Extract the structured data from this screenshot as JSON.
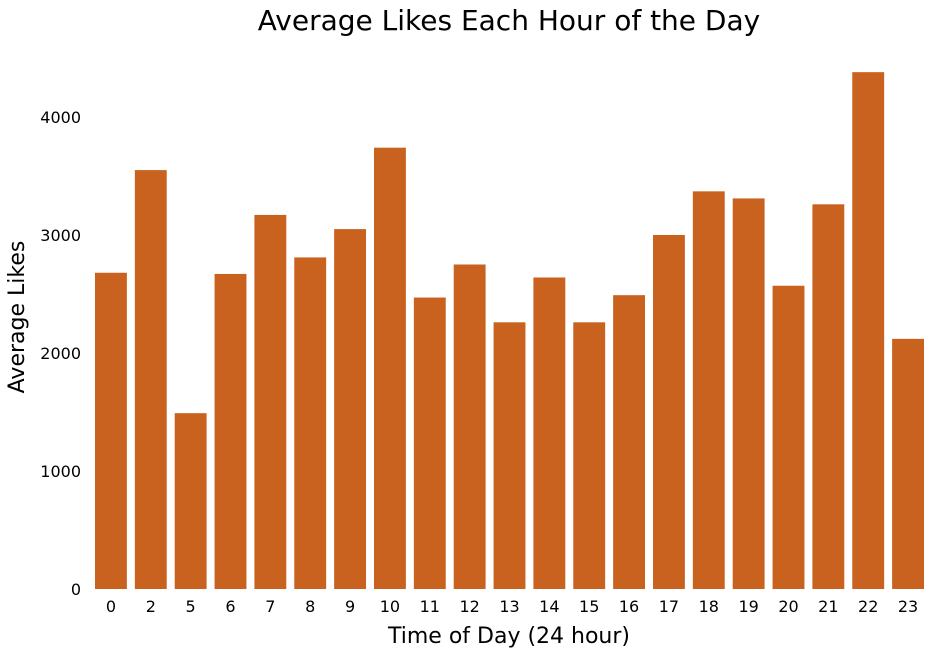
{
  "chart_data": {
    "type": "bar",
    "title": "Average Likes Each Hour of the Day",
    "xlabel": "Time of Day (24 hour)",
    "ylabel": "Average Likes",
    "categories": [
      "0",
      "2",
      "5",
      "6",
      "7",
      "8",
      "9",
      "10",
      "11",
      "12",
      "13",
      "14",
      "15",
      "16",
      "17",
      "18",
      "19",
      "20",
      "21",
      "22",
      "23"
    ],
    "values": [
      2680,
      3550,
      1490,
      2670,
      3170,
      2810,
      3050,
      3740,
      2470,
      2750,
      2260,
      2640,
      2260,
      2490,
      3000,
      3370,
      3310,
      2570,
      3260,
      4380,
      2120
    ],
    "ylim": [
      0,
      4500
    ],
    "yticks": [
      0,
      1000,
      2000,
      3000,
      4000
    ],
    "bar_color": "#c9621f",
    "grid": false,
    "legend": "none"
  }
}
